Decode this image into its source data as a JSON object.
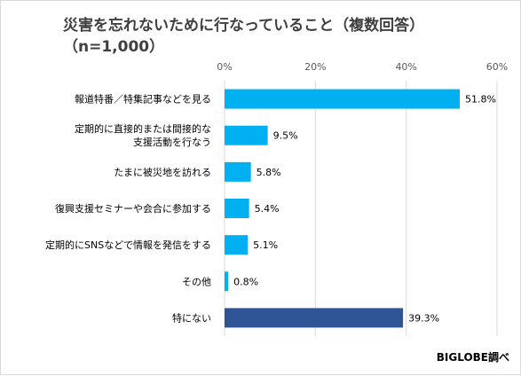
{
  "chart_data": {
    "type": "bar",
    "orientation": "horizontal",
    "title_lines": [
      "災害を忘れないために行なっていること（複数回答）",
      "（n=1,000）"
    ],
    "categories": [
      [
        "報道特番／特集記事などを見る"
      ],
      [
        "定期的に直接的または間接的な",
        "支援活動を行なう"
      ],
      [
        "たまに被災地を訪れる"
      ],
      [
        "復興支援セミナーや会合に参加する"
      ],
      [
        "定期的にSNSなどで情報を発信をする"
      ],
      [
        "その他"
      ],
      [
        "特にない"
      ]
    ],
    "values": [
      51.8,
      9.5,
      5.8,
      5.4,
      5.1,
      0.8,
      39.3
    ],
    "value_labels": [
      "51.8%",
      "9.5%",
      "5.8%",
      "5.4%",
      "5.1%",
      "0.8%",
      "39.3%"
    ],
    "bar_colors": [
      "#00b0f0",
      "#00b0f0",
      "#00b0f0",
      "#00b0f0",
      "#00b0f0",
      "#00b0f0",
      "#2f5597"
    ],
    "xlim": [
      0,
      60
    ],
    "xticks": [
      "0%",
      "20%",
      "40%",
      "60%"
    ],
    "grid": true,
    "gridline_color": "#d9d9d9"
  },
  "credit": "BIGLOBE調べ"
}
